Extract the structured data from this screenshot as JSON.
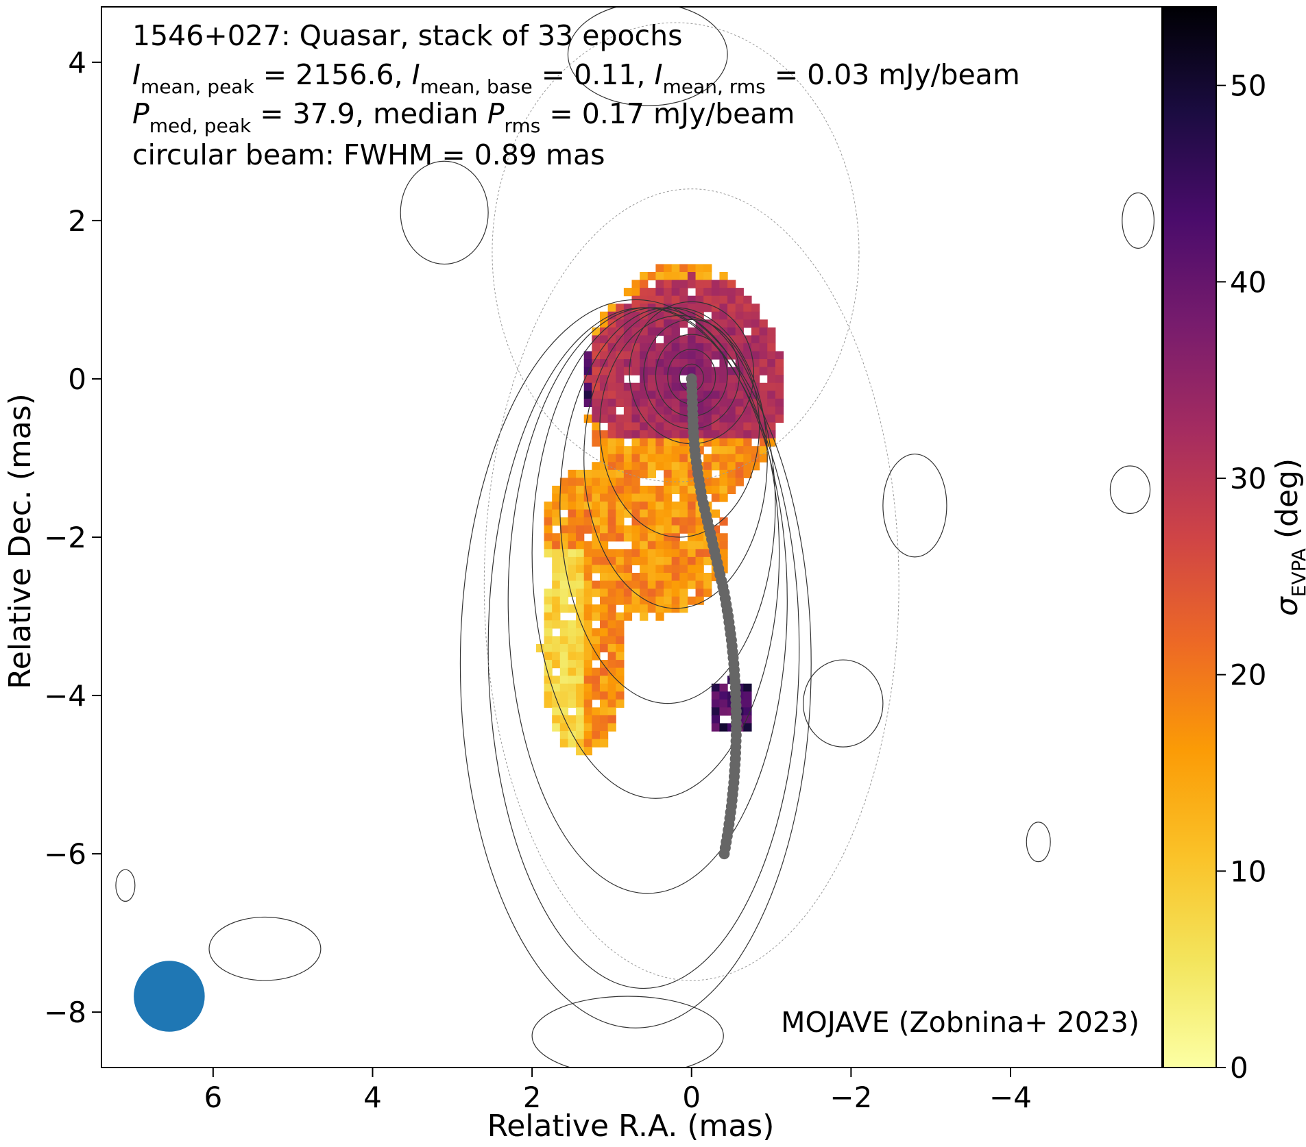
{
  "chart_data": {
    "type": "heatmap",
    "title_lines": [
      "1546+027: Quasar, stack of 33 epochs",
      [
        "I",
        "mean, peak",
        " = 2156.6, ",
        "I",
        "mean, base",
        " = 0.11, ",
        "I",
        "mean, rms",
        " = 0.03 mJy/beam"
      ],
      [
        "P",
        "med, peak",
        " = 37.9, median ",
        "P",
        "rms",
        " = 0.17 mJy/beam"
      ],
      "circular beam: FWHM = 0.89 mas"
    ],
    "credit": "MOJAVE (Zobnina+ 2023)",
    "xlabel": "Relative R.A. (mas)",
    "ylabel": "Relative Dec. (mas)",
    "colorbar_label": [
      "σ",
      "EVPA",
      " (deg)"
    ],
    "xlim": [
      7.4,
      -5.9
    ],
    "ylim": [
      -8.7,
      4.7
    ],
    "xticks": [
      6,
      4,
      2,
      0,
      -2,
      -4
    ],
    "yticks": [
      4,
      2,
      0,
      -2,
      -4,
      -6,
      -8
    ],
    "xtick_labels": [
      "6",
      "4",
      "2",
      "0",
      "−2",
      "−4"
    ],
    "ytick_labels": [
      "4",
      "2",
      "0",
      "−2",
      "−4",
      "−6",
      "−8"
    ],
    "colorbar_range": [
      0,
      54
    ],
    "colorbar_ticks": [
      0,
      10,
      20,
      30,
      40,
      50
    ],
    "colorbar_tick_labels": [
      "0",
      "10",
      "20",
      "30",
      "40",
      "50"
    ],
    "colormap": "inferno_r",
    "beam": {
      "x": 6.55,
      "y": -7.8,
      "fwhm_mas": 0.89,
      "color": "#1f77b4"
    },
    "ridgeline": {
      "color": "#666666",
      "points": [
        [
          0,
          0
        ],
        [
          -0.01,
          -0.3
        ],
        [
          -0.02,
          -0.6
        ],
        [
          -0.04,
          -0.9
        ],
        [
          -0.08,
          -1.2
        ],
        [
          -0.13,
          -1.5
        ],
        [
          -0.2,
          -1.8
        ],
        [
          -0.27,
          -2.1
        ],
        [
          -0.34,
          -2.4
        ],
        [
          -0.41,
          -2.7
        ],
        [
          -0.46,
          -3.0
        ],
        [
          -0.5,
          -3.3
        ],
        [
          -0.53,
          -3.6
        ],
        [
          -0.55,
          -3.9
        ],
        [
          -0.56,
          -4.2
        ],
        [
          -0.56,
          -4.5
        ],
        [
          -0.55,
          -4.8
        ],
        [
          -0.53,
          -5.1
        ],
        [
          -0.5,
          -5.4
        ],
        [
          -0.46,
          -5.7
        ],
        [
          -0.41,
          -6.0
        ]
      ]
    },
    "contours": {
      "color": "#333333",
      "core_center": [
        0,
        0
      ],
      "core_radii_mas": [
        0.15,
        0.3,
        0.45,
        0.6,
        0.78
      ]
    }
  }
}
